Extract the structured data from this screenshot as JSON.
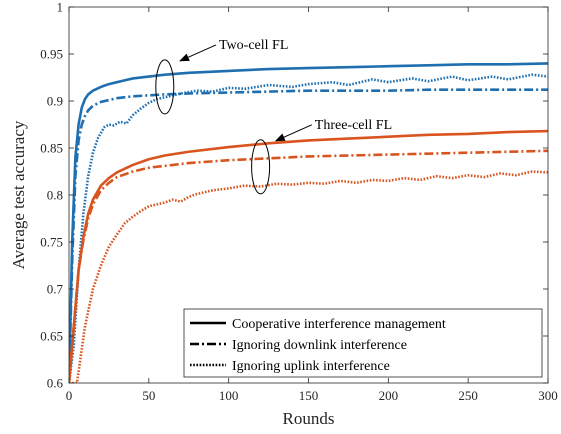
{
  "chart_data": {
    "type": "line",
    "title": "",
    "xlabel": "Rounds",
    "ylabel": "Average test accuracy",
    "xlim": [
      0,
      300
    ],
    "ylim": [
      0.6,
      1
    ],
    "xticks": [
      0,
      50,
      100,
      150,
      200,
      250,
      300
    ],
    "yticks": [
      0.6,
      0.65,
      0.7,
      0.75,
      0.8,
      0.85,
      0.9,
      0.95,
      1
    ],
    "xtick_labels": [
      "0",
      "50",
      "100",
      "150",
      "200",
      "250",
      "300"
    ],
    "ytick_labels": [
      "0.6",
      "0.65",
      "0.7",
      "0.75",
      "0.8",
      "0.85",
      "0.9",
      "0.95",
      "1"
    ],
    "grid": false,
    "legend_position": "bottom-right",
    "legend": [
      {
        "label": "Cooperative interference management",
        "style": "solid"
      },
      {
        "label": "Ignoring downlink interference",
        "style": "dashdot"
      },
      {
        "label": "Ignoring uplink interference",
        "style": "dotted"
      }
    ],
    "annotations": [
      {
        "text": "Two-cell FL",
        "ellipse_center": [
          60,
          0.915
        ],
        "arrow_target": [
          62,
          0.935
        ]
      },
      {
        "text": "Three-cell FL",
        "ellipse_center": [
          120,
          0.83
        ],
        "arrow_target": [
          122,
          0.845
        ]
      }
    ],
    "colors": {
      "two_cell": "#1f6fb0",
      "three_cell": "#d9541e"
    },
    "series": [
      {
        "group": "two_cell",
        "style": "solid",
        "x": [
          0,
          2,
          4,
          6,
          8,
          10,
          12,
          15,
          20,
          25,
          30,
          40,
          50,
          60,
          75,
          100,
          125,
          150,
          175,
          200,
          225,
          250,
          275,
          300
        ],
        "y": [
          0.6,
          0.75,
          0.84,
          0.875,
          0.893,
          0.902,
          0.907,
          0.911,
          0.915,
          0.918,
          0.92,
          0.924,
          0.926,
          0.928,
          0.93,
          0.932,
          0.934,
          0.935,
          0.936,
          0.937,
          0.938,
          0.939,
          0.939,
          0.94
        ]
      },
      {
        "group": "two_cell",
        "style": "dashdot",
        "x": [
          0,
          2,
          4,
          6,
          8,
          10,
          12,
          15,
          20,
          25,
          30,
          40,
          50,
          60,
          75,
          100,
          125,
          150,
          175,
          200,
          225,
          250,
          275,
          300
        ],
        "y": [
          0.6,
          0.73,
          0.82,
          0.858,
          0.875,
          0.884,
          0.89,
          0.895,
          0.899,
          0.901,
          0.903,
          0.905,
          0.906,
          0.907,
          0.908,
          0.909,
          0.91,
          0.911,
          0.911,
          0.911,
          0.912,
          0.912,
          0.912,
          0.912
        ]
      },
      {
        "group": "two_cell",
        "style": "dotted",
        "x": [
          0,
          3,
          6,
          9,
          12,
          15,
          18,
          22,
          25,
          28,
          32,
          36,
          40,
          45,
          50,
          55,
          60,
          70,
          80,
          90,
          100,
          110,
          125,
          140,
          150,
          165,
          175,
          190,
          200,
          215,
          225,
          240,
          250,
          265,
          275,
          290,
          300
        ],
        "y": [
          0.6,
          0.64,
          0.72,
          0.78,
          0.82,
          0.845,
          0.86,
          0.872,
          0.875,
          0.874,
          0.878,
          0.876,
          0.885,
          0.892,
          0.898,
          0.902,
          0.904,
          0.908,
          0.911,
          0.91,
          0.914,
          0.913,
          0.917,
          0.915,
          0.918,
          0.92,
          0.917,
          0.923,
          0.92,
          0.924,
          0.921,
          0.926,
          0.922,
          0.926,
          0.923,
          0.928,
          0.926
        ]
      },
      {
        "group": "three_cell",
        "style": "solid",
        "x": [
          0,
          3,
          6,
          9,
          12,
          15,
          20,
          25,
          30,
          40,
          50,
          60,
          75,
          100,
          125,
          150,
          175,
          200,
          225,
          250,
          275,
          300
        ],
        "y": [
          0.6,
          0.66,
          0.72,
          0.755,
          0.78,
          0.795,
          0.81,
          0.818,
          0.824,
          0.832,
          0.838,
          0.842,
          0.846,
          0.851,
          0.855,
          0.858,
          0.86,
          0.862,
          0.864,
          0.865,
          0.867,
          0.868
        ]
      },
      {
        "group": "three_cell",
        "style": "dashdot",
        "x": [
          0,
          3,
          6,
          9,
          12,
          15,
          20,
          25,
          30,
          40,
          50,
          60,
          75,
          100,
          125,
          150,
          175,
          200,
          225,
          250,
          275,
          300
        ],
        "y": [
          0.6,
          0.66,
          0.72,
          0.752,
          0.775,
          0.79,
          0.805,
          0.813,
          0.819,
          0.825,
          0.829,
          0.831,
          0.834,
          0.837,
          0.839,
          0.841,
          0.842,
          0.843,
          0.844,
          0.845,
          0.846,
          0.847
        ]
      },
      {
        "group": "three_cell",
        "style": "dotted",
        "x": [
          0,
          5,
          10,
          15,
          20,
          25,
          30,
          35,
          40,
          45,
          50,
          55,
          60,
          65,
          70,
          75,
          80,
          90,
          100,
          110,
          120,
          130,
          140,
          150,
          160,
          170,
          180,
          190,
          200,
          210,
          220,
          230,
          240,
          250,
          260,
          270,
          280,
          290,
          300
        ],
        "y": [
          0.6,
          0.6,
          0.66,
          0.7,
          0.725,
          0.745,
          0.758,
          0.77,
          0.777,
          0.783,
          0.788,
          0.79,
          0.792,
          0.795,
          0.793,
          0.798,
          0.801,
          0.805,
          0.807,
          0.81,
          0.809,
          0.812,
          0.811,
          0.813,
          0.812,
          0.815,
          0.813,
          0.816,
          0.815,
          0.818,
          0.816,
          0.82,
          0.818,
          0.821,
          0.819,
          0.823,
          0.821,
          0.825,
          0.824
        ]
      }
    ]
  }
}
